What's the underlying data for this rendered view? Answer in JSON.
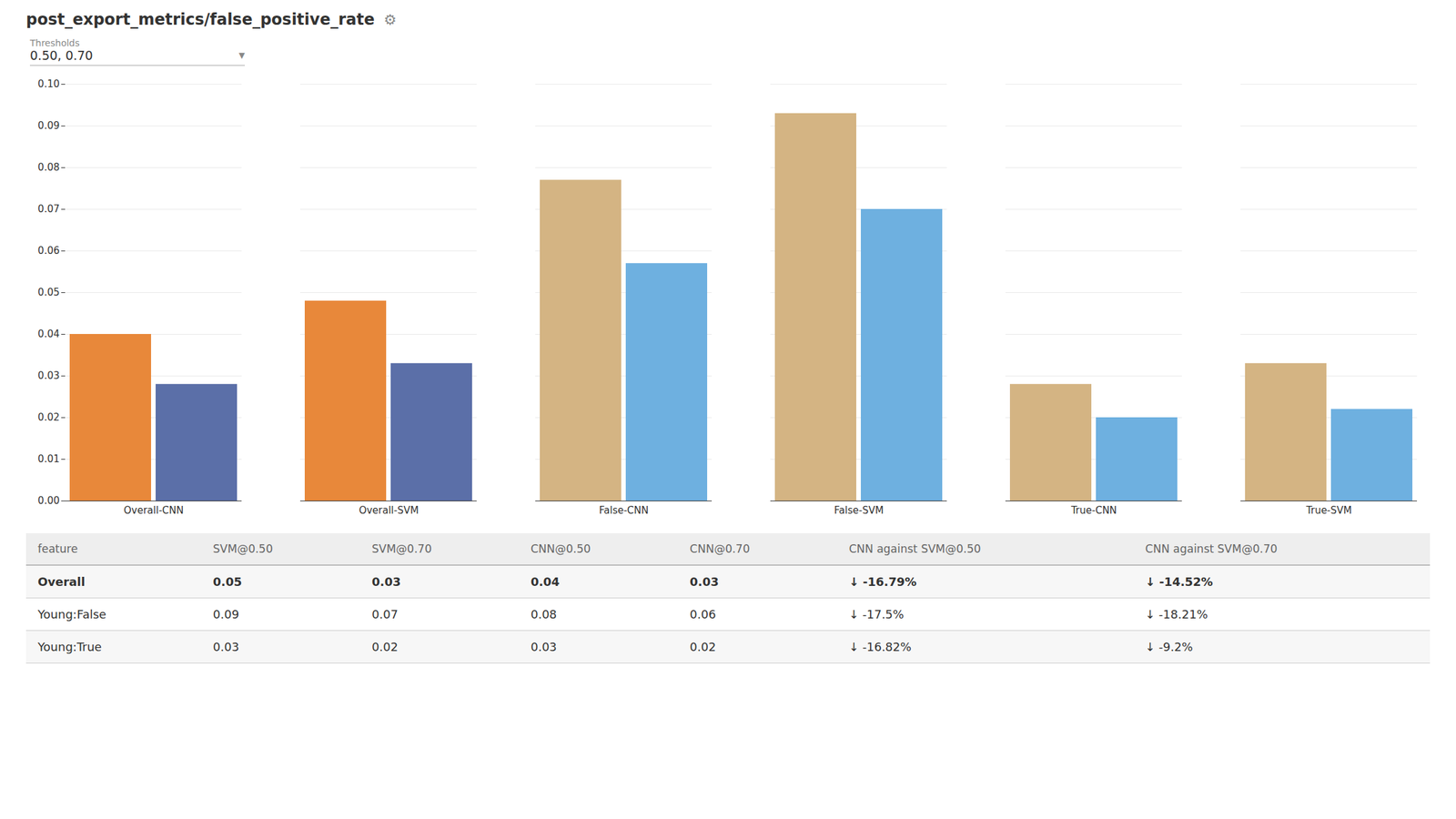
{
  "chart_data": {
    "type": "bar",
    "title": "post_export_metrics/false_positive_rate",
    "annotations": [
      "⚙",
      "Thresholds",
      "0.50, 0.70",
      "▼"
    ],
    "categories": [
      "Overall-CNN",
      "Overall-SVM",
      "False-CNN",
      "False-SVM",
      "True-CNN",
      "True-SVM"
    ],
    "series": [
      {
        "values": [
          0.04,
          0.048,
          0.077,
          0.093,
          0.028,
          0.033
        ],
        "colors": [
          "#E8883A",
          "#E8883A",
          "#D4B483",
          "#D4B483",
          "#D4B483",
          "#D4B483"
        ]
      },
      {
        "values": [
          0.028,
          0.033,
          0.057,
          0.07,
          0.02,
          0.022
        ],
        "colors": [
          "#5B6FA8",
          "#5B6FA8",
          "#6EB0E0",
          "#6EB0E0",
          "#6EB0E0",
          "#6EB0E0"
        ]
      }
    ],
    "ylim": [
      0,
      0.1
    ],
    "yticks": [
      {
        "value": 0,
        "label": "0.00"
      },
      0.01,
      0.02,
      0.03,
      0.04,
      0.05,
      0.06,
      0.07,
      0.08,
      0.09,
      {
        "value": 0.1,
        "label": "0.10"
      }
    ],
    "grid": true,
    "table": {
      "headers": [
        "feature",
        "SVM@0.50",
        "SVM@0.70",
        "CNN@0.50",
        "CNN@0.70",
        "CNN against SVM@0.50",
        "CNN against SVM@0.70"
      ],
      "rows": [
        [
          "Overall",
          "0.05",
          "0.03",
          "0.04",
          "0.03",
          "↓ -16.79%",
          "↓ -14.52%"
        ],
        [
          "Young:False",
          "0.09",
          "0.07",
          "0.08",
          "0.06",
          "↓ -17.5%",
          "↓ -18.21%"
        ],
        [
          "Young:True",
          "0.03",
          "0.02",
          "0.03",
          "0.02",
          "↓ -16.82%",
          "↓ -9.2%"
        ]
      ]
    }
  }
}
